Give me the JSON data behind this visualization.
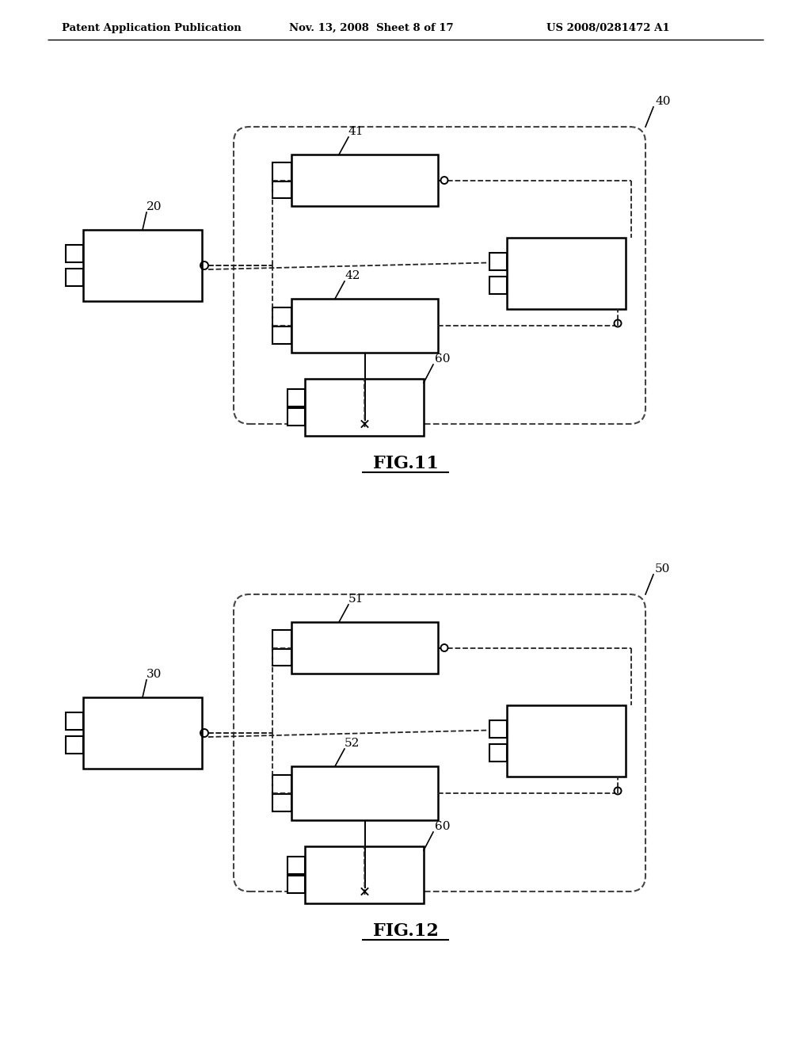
{
  "bg_color": "#ffffff",
  "header_text": "Patent Application Publication",
  "header_date": "Nov. 13, 2008  Sheet 8 of 17",
  "header_patent": "US 2008/0281472 A1",
  "fig11_label": "FIG.11",
  "fig12_label": "FIG.12"
}
